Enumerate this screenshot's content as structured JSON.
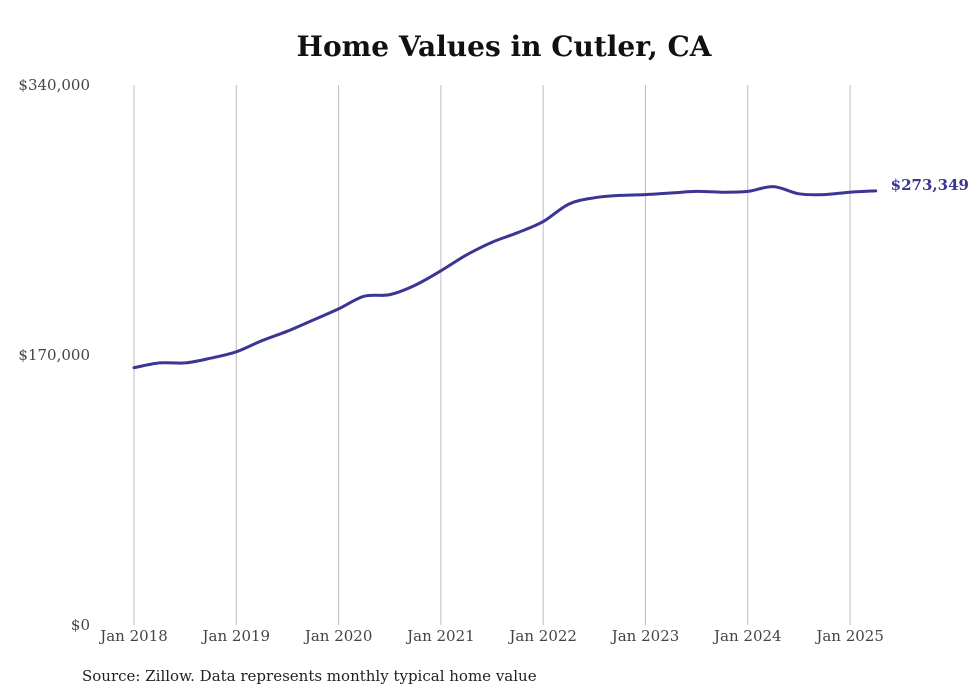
{
  "chart_data": {
    "type": "line",
    "title": "Home Values in Cutler, CA",
    "xlabel": "",
    "ylabel": "",
    "ylim": [
      0,
      340000
    ],
    "yticks": [
      {
        "value": 0,
        "label": "$0"
      },
      {
        "value": 170000,
        "label": "$170,000"
      },
      {
        "value": 340000,
        "label": "$340,000"
      }
    ],
    "xticks": [
      {
        "value": "2018-01",
        "label": "Jan 2018"
      },
      {
        "value": "2019-01",
        "label": "Jan 2019"
      },
      {
        "value": "2020-01",
        "label": "Jan 2020"
      },
      {
        "value": "2021-01",
        "label": "Jan 2021"
      },
      {
        "value": "2022-01",
        "label": "Jan 2022"
      },
      {
        "value": "2023-01",
        "label": "Jan 2023"
      },
      {
        "value": "2024-01",
        "label": "Jan 2024"
      },
      {
        "value": "2025-01",
        "label": "Jan 2025"
      }
    ],
    "grid": {
      "vertical": true,
      "horizontal": false
    },
    "legend": "none",
    "end_label": "$273,349",
    "series": [
      {
        "color": "#3b3594",
        "points": [
          {
            "x": "2018-01",
            "y": 162000
          },
          {
            "x": "2018-04",
            "y": 165000
          },
          {
            "x": "2018-07",
            "y": 165000
          },
          {
            "x": "2018-10",
            "y": 168000
          },
          {
            "x": "2019-01",
            "y": 172000
          },
          {
            "x": "2019-04",
            "y": 179000
          },
          {
            "x": "2019-07",
            "y": 185000
          },
          {
            "x": "2019-10",
            "y": 192000
          },
          {
            "x": "2020-01",
            "y": 199000
          },
          {
            "x": "2020-04",
            "y": 207000
          },
          {
            "x": "2020-07",
            "y": 208000
          },
          {
            "x": "2020-10",
            "y": 214000
          },
          {
            "x": "2021-01",
            "y": 223000
          },
          {
            "x": "2021-04",
            "y": 233000
          },
          {
            "x": "2021-07",
            "y": 241000
          },
          {
            "x": "2021-10",
            "y": 247000
          },
          {
            "x": "2022-01",
            "y": 254000
          },
          {
            "x": "2022-04",
            "y": 265000
          },
          {
            "x": "2022-07",
            "y": 269000
          },
          {
            "x": "2022-10",
            "y": 270500
          },
          {
            "x": "2023-01",
            "y": 271000
          },
          {
            "x": "2023-04",
            "y": 272000
          },
          {
            "x": "2023-07",
            "y": 273000
          },
          {
            "x": "2023-10",
            "y": 272500
          },
          {
            "x": "2024-01",
            "y": 273000
          },
          {
            "x": "2024-04",
            "y": 276000
          },
          {
            "x": "2024-07",
            "y": 271500
          },
          {
            "x": "2024-10",
            "y": 271000
          },
          {
            "x": "2025-01",
            "y": 272500
          },
          {
            "x": "2025-04",
            "y": 273349
          }
        ]
      }
    ]
  },
  "source_note": "Source: Zillow. Data represents monthly typical home value"
}
